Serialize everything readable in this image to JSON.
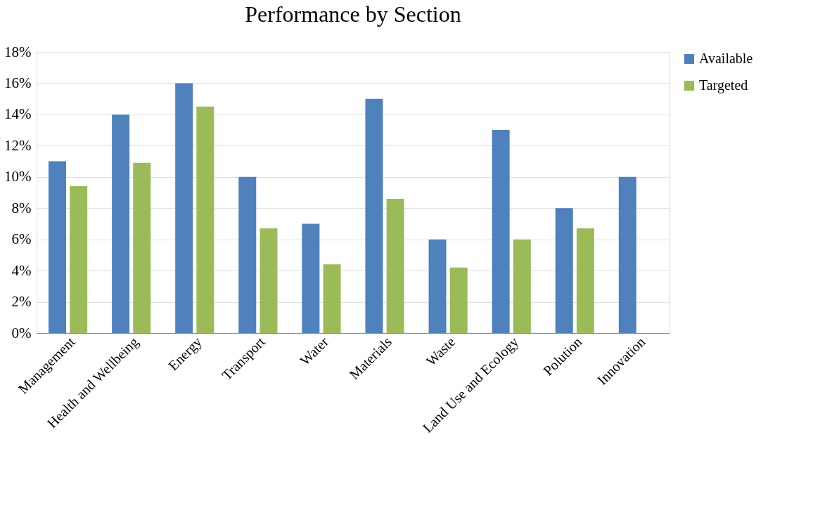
{
  "chart_data": {
    "type": "bar",
    "title": "Performance by Section",
    "categories": [
      "Management",
      "Health and Wellbeing",
      "Energy",
      "Transport",
      "Water",
      "Materials",
      "Waste",
      "Land Use and Ecology",
      "Polution",
      "Innovation"
    ],
    "series": [
      {
        "name": "Available",
        "color": "#4f81bd",
        "values": [
          11,
          14,
          16,
          10,
          7,
          15,
          6,
          13,
          8,
          10
        ]
      },
      {
        "name": "Targeted",
        "color": "#9bbb59",
        "values": [
          9.4,
          10.9,
          14.5,
          6.7,
          4.4,
          8.6,
          4.2,
          6.0,
          6.7,
          null
        ]
      }
    ],
    "ylim": [
      0,
      18
    ],
    "yticks": [
      {
        "value": 0,
        "label": "0%"
      },
      {
        "value": 2,
        "label": "2%"
      },
      {
        "value": 4,
        "label": "4%"
      },
      {
        "value": 6,
        "label": "6%"
      },
      {
        "value": 8,
        "label": "8%"
      },
      {
        "value": 10,
        "label": "10%"
      },
      {
        "value": 12,
        "label": "12%"
      },
      {
        "value": 14,
        "label": "14%"
      },
      {
        "value": 16,
        "label": "16%"
      },
      {
        "value": 18,
        "label": "18%"
      }
    ],
    "grid": "y",
    "legend": "right"
  }
}
